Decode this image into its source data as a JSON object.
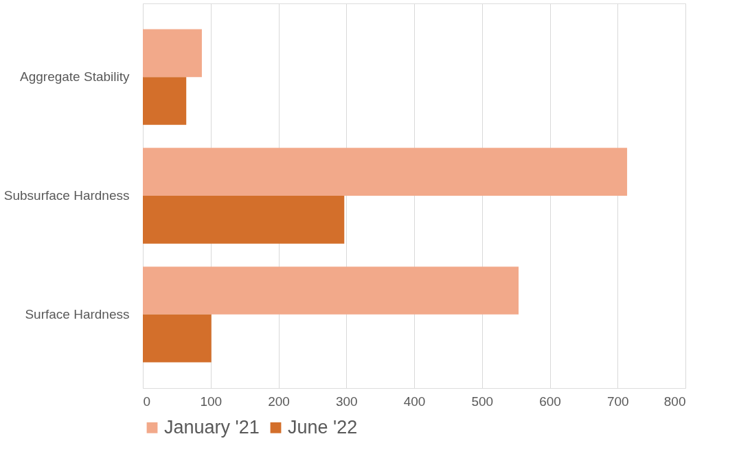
{
  "chart_data": {
    "type": "bar",
    "orientation": "horizontal",
    "categories": [
      "Aggregate Stability",
      "Subsurface Hardness",
      "Surface Hardness"
    ],
    "series": [
      {
        "name": "January '21",
        "color": "#f2a98a",
        "values": [
          87,
          714,
          554
        ]
      },
      {
        "name": "June '22",
        "color": "#d36f2b",
        "values": [
          64,
          297,
          101
        ]
      }
    ],
    "xlim": [
      0,
      800
    ],
    "xticks": [
      0,
      100,
      200,
      300,
      400,
      500,
      600,
      700,
      800
    ],
    "grid": "x",
    "legend": "bottom"
  }
}
